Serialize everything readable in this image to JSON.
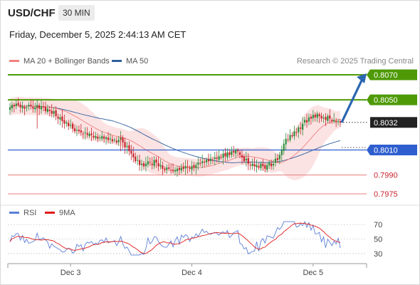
{
  "header": {
    "symbol": "USD/CHF",
    "timeframe": "30 MIN"
  },
  "timestamp": "Friday, December 5, 2025 2:44:13 AM CET",
  "legend": {
    "ma20": "MA 20 + Bollinger Bands",
    "ma20_color": "#f08080",
    "ma50": "MA 50",
    "ma50_color": "#2f5f9e"
  },
  "credit": "Research © 2025 Trading Central",
  "rsi_legend": {
    "rsi": "RSI",
    "rsi_color": "#5b7fd6",
    "ma9": "9MA",
    "ma9_color": "#e01b1b"
  },
  "colors": {
    "up": "#2e8b3a",
    "down": "#c8232c",
    "target": "#2c65b0",
    "resistance": "#4e9a06",
    "support": "#2f5fcf",
    "support_weak": "#e87c7c"
  },
  "chart_data": {
    "type": "candlestick",
    "ylim": [
      0.7968,
      0.808
    ],
    "current_price": 0.8032,
    "x_labels": [
      {
        "label": "Dec 3",
        "index": 29
      },
      {
        "label": "Dec 4",
        "index": 87
      },
      {
        "label": "Dec 5",
        "index": 145
      }
    ],
    "levels": [
      {
        "label": "0.8070",
        "value": 0.807,
        "kind": "resistance"
      },
      {
        "label": "0.8050",
        "value": 0.805,
        "kind": "resistance"
      },
      {
        "label": "0.8032",
        "value": 0.8032,
        "kind": "current"
      },
      {
        "label": "0.8010",
        "value": 0.801,
        "kind": "support"
      },
      {
        "label": "0.7990",
        "value": 0.799,
        "kind": "support_weak"
      },
      {
        "label": "0.7975",
        "value": 0.7975,
        "kind": "support_weak"
      }
    ],
    "projection": {
      "from": 0.8032,
      "to": 0.807
    },
    "close": [
      0.8044,
      0.8046,
      0.8045,
      0.8047,
      0.8046,
      0.8044,
      0.8045,
      0.8043,
      0.8044,
      0.8046,
      0.8045,
      0.8043,
      0.8044,
      0.8046,
      0.8043,
      0.8045,
      0.8044,
      0.8041,
      0.8043,
      0.8041,
      0.8039,
      0.8041,
      0.8037,
      0.8035,
      0.8036,
      0.8033,
      0.8031,
      0.8032,
      0.8029,
      0.803,
      0.8027,
      0.8025,
      0.8026,
      0.8025,
      0.8024,
      0.8023,
      0.8024,
      0.8022,
      0.8023,
      0.8022,
      0.802,
      0.8021,
      0.8019,
      0.802,
      0.8021,
      0.8019,
      0.802,
      0.8018,
      0.8019,
      0.8017,
      0.8018,
      0.8016,
      0.8018,
      0.802,
      0.8016,
      0.8012,
      0.8013,
      0.8009,
      0.8007,
      0.8004,
      0.8001,
      0.8002,
      0.7998,
      0.7999,
      0.7997,
      0.7999,
      0.8001,
      0.8,
      0.7998,
      0.8002,
      0.8,
      0.7997,
      0.7998,
      0.7995,
      0.7994,
      0.7996,
      0.7995,
      0.7994,
      0.7993,
      0.7994,
      0.7995,
      0.7994,
      0.7996,
      0.7995,
      0.7997,
      0.7996,
      0.7995,
      0.7997,
      0.7996,
      0.7998,
      0.8,
      0.7999,
      0.8001,
      0.8,
      0.8002,
      0.8001,
      0.8003,
      0.8002,
      0.8004,
      0.8003,
      0.8005,
      0.8004,
      0.8007,
      0.8005,
      0.8008,
      0.8006,
      0.8009,
      0.8008,
      0.801,
      0.8009,
      0.8006,
      0.8004,
      0.8001,
      0.8003,
      0.7999,
      0.7998,
      0.7999,
      0.7997,
      0.7998,
      0.7996,
      0.7999,
      0.7997,
      0.7995,
      0.7998,
      0.8,
      0.7997,
      0.7999,
      0.8003,
      0.8002,
      0.8006,
      0.801,
      0.8015,
      0.8019,
      0.8018,
      0.8022,
      0.8021,
      0.8025,
      0.8024,
      0.8028,
      0.8027,
      0.8031,
      0.8034,
      0.8032,
      0.8036,
      0.8035,
      0.8038,
      0.8036,
      0.8039,
      0.8037,
      0.8035,
      0.8036,
      0.8034,
      0.8037,
      0.8035,
      0.8033,
      0.8034,
      0.8032,
      0.8033,
      0.8032
    ],
    "rsi_axis": {
      "ylim": [
        20,
        80
      ],
      "ticks": [
        70,
        50,
        30
      ]
    }
  }
}
